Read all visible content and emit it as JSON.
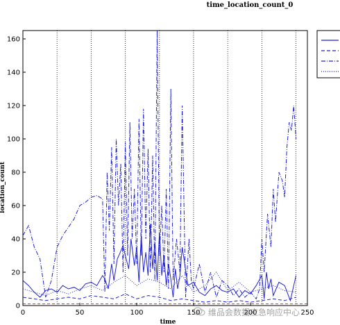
{
  "chart_data": {
    "type": "line",
    "title": "time_location_count_0",
    "xlabel": "time",
    "ylabel": "location_count",
    "xlim": [
      0,
      250
    ],
    "ylim": [
      0,
      165
    ],
    "xticks": [
      0,
      50,
      100,
      150,
      200,
      250
    ],
    "yticks": [
      0,
      20,
      40,
      60,
      80,
      100,
      120,
      140,
      160
    ],
    "grid": "vertical dotted lines",
    "vlines": [
      0,
      30,
      60,
      90,
      120,
      150,
      180,
      210,
      240
    ],
    "legend": {
      "placement": "outside top-right",
      "labels": [
        "",
        "",
        "",
        ""
      ]
    },
    "series": [
      {
        "style": "solid",
        "color": "#1f1fd6",
        "x": [
          0,
          5,
          10,
          15,
          20,
          25,
          30,
          35,
          40,
          45,
          50,
          55,
          60,
          65,
          70,
          72,
          75,
          78,
          80,
          83,
          85,
          88,
          90,
          93,
          95,
          98,
          100,
          102,
          104,
          106,
          108,
          110,
          112,
          114,
          116,
          118,
          120,
          122,
          124,
          126,
          128,
          130,
          132,
          134,
          136,
          138,
          140,
          145,
          150,
          155,
          160,
          165,
          170,
          175,
          180,
          185,
          190,
          195,
          200,
          205,
          210,
          212,
          214,
          216,
          218,
          220,
          225,
          230,
          235,
          240
        ],
        "values": [
          15,
          12,
          8,
          5,
          9,
          10,
          8,
          12,
          10,
          11,
          9,
          13,
          14,
          12,
          18,
          16,
          10,
          25,
          15,
          28,
          31,
          36,
          30,
          22,
          40,
          24,
          35,
          14,
          42,
          20,
          32,
          18,
          49,
          22,
          38,
          15,
          44,
          18,
          30,
          12,
          25,
          16,
          5,
          22,
          10,
          18,
          35,
          12,
          14,
          8,
          6,
          10,
          12,
          9,
          8,
          10,
          5,
          9,
          7,
          12,
          18,
          4,
          20,
          10,
          16,
          6,
          14,
          12,
          3,
          18
        ]
      },
      {
        "style": "dashed",
        "color": "#1f1fd6",
        "x": [
          0,
          10,
          20,
          30,
          40,
          50,
          60,
          70,
          80,
          90,
          100,
          110,
          120,
          130,
          140,
          150,
          160,
          170,
          180,
          190,
          200,
          210,
          220,
          230,
          240
        ],
        "values": [
          5,
          4,
          3,
          4,
          5,
          4,
          6,
          5,
          4,
          7,
          4,
          6,
          5,
          3,
          4,
          3,
          2,
          3,
          2,
          3,
          2,
          3,
          4,
          3,
          5
        ]
      },
      {
        "style": "dashdot",
        "color": "#1f1fd6",
        "x": [
          0,
          5,
          10,
          15,
          20,
          25,
          30,
          35,
          40,
          45,
          50,
          55,
          60,
          65,
          70,
          72,
          74,
          76,
          78,
          80,
          82,
          84,
          86,
          88,
          90,
          92,
          94,
          96,
          98,
          100,
          102,
          104,
          106,
          108,
          110,
          112,
          114,
          116,
          118,
          120,
          122,
          124,
          126,
          128,
          130,
          132,
          135,
          138,
          140,
          143,
          146,
          148,
          150,
          155,
          160,
          165,
          170,
          175,
          180,
          185,
          190,
          195,
          200,
          205,
          208,
          210,
          212,
          215,
          218,
          220,
          222,
          225,
          228,
          230,
          232,
          234,
          236,
          238,
          240
        ],
        "values": [
          42,
          48,
          35,
          28,
          5,
          15,
          35,
          42,
          47,
          52,
          60,
          62,
          65,
          66,
          64,
          8,
          80,
          45,
          95,
          25,
          100,
          60,
          85,
          20,
          98,
          30,
          110,
          40,
          70,
          25,
          112,
          30,
          118,
          40,
          94,
          20,
          90,
          15,
          165,
          30,
          60,
          20,
          70,
          10,
          130,
          15,
          40,
          20,
          120,
          5,
          40,
          15,
          10,
          25,
          8,
          20,
          5,
          15,
          12,
          6,
          10,
          5,
          8,
          4,
          10,
          40,
          20,
          55,
          35,
          70,
          50,
          80,
          75,
          65,
          95,
          110,
          105,
          120,
          100
        ]
      },
      {
        "style": "dotted",
        "color": "#1f1fd6",
        "x": [
          0,
          10,
          20,
          30,
          40,
          50,
          60,
          70,
          80,
          90,
          100,
          110,
          120,
          130,
          140,
          150,
          160,
          170,
          180,
          190,
          200,
          210,
          220,
          230,
          240
        ],
        "values": [
          10,
          8,
          6,
          9,
          7,
          10,
          12,
          9,
          14,
          18,
          12,
          16,
          14,
          10,
          18,
          8,
          12,
          20,
          9,
          14,
          8,
          10,
          12,
          9,
          8
        ]
      }
    ],
    "reference_line": {
      "y": 1,
      "color": "#e03030",
      "style": "dashed"
    }
  },
  "watermark": {
    "text": "维品会数据应急响应中心",
    "logo": "watermark-logo-icon"
  }
}
